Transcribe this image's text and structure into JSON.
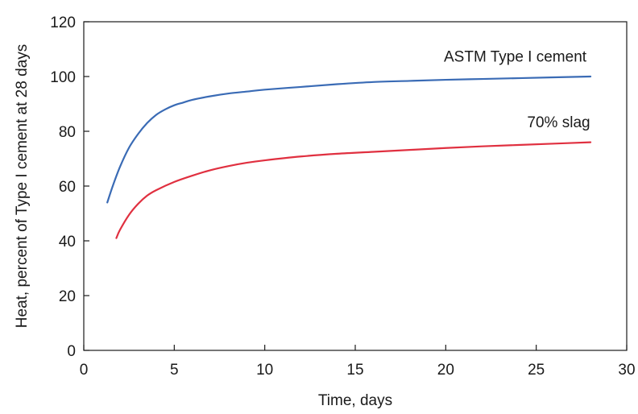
{
  "chart_data": {
    "type": "line",
    "title": "",
    "xlabel": "Time, days",
    "ylabel": "Heat, percent of Type I cement at 28 days",
    "xlim": [
      0,
      30
    ],
    "ylim": [
      0,
      120
    ],
    "xticks": [
      0,
      5,
      10,
      15,
      20,
      25,
      30
    ],
    "yticks": [
      0,
      20,
      40,
      60,
      80,
      100,
      120
    ],
    "grid": false,
    "legend": "inline-labels",
    "series": [
      {
        "name": "ASTM Type I cement",
        "color": "#3a6bb5",
        "x": [
          1.3,
          1.6,
          2.0,
          2.5,
          3.0,
          3.5,
          4.0,
          4.5,
          5.0,
          5.5,
          6.0,
          7.0,
          8.0,
          9.0,
          10.0,
          12.0,
          14.0,
          16.0,
          18.0,
          20.0,
          22.0,
          24.0,
          26.0,
          28.0
        ],
        "y": [
          54,
          60,
          67,
          74,
          79,
          83,
          86,
          88,
          89.5,
          90.5,
          91.5,
          92.8,
          93.8,
          94.5,
          95.2,
          96.2,
          97.2,
          98,
          98.4,
          98.8,
          99.1,
          99.4,
          99.7,
          100
        ]
      },
      {
        "name": "70% slag",
        "color": "#e03040",
        "x": [
          1.8,
          2.0,
          2.5,
          3.0,
          3.5,
          4.0,
          5.0,
          6.0,
          7.0,
          8.0,
          9.0,
          10.0,
          12.0,
          14.0,
          16.0,
          18.0,
          20.0,
          22.0,
          24.0,
          26.0,
          28.0
        ],
        "y": [
          41,
          44,
          49.5,
          53.5,
          56.5,
          58.5,
          61.5,
          63.8,
          65.8,
          67.3,
          68.5,
          69.4,
          70.8,
          71.8,
          72.5,
          73.2,
          73.9,
          74.5,
          75,
          75.5,
          76
        ]
      }
    ]
  }
}
